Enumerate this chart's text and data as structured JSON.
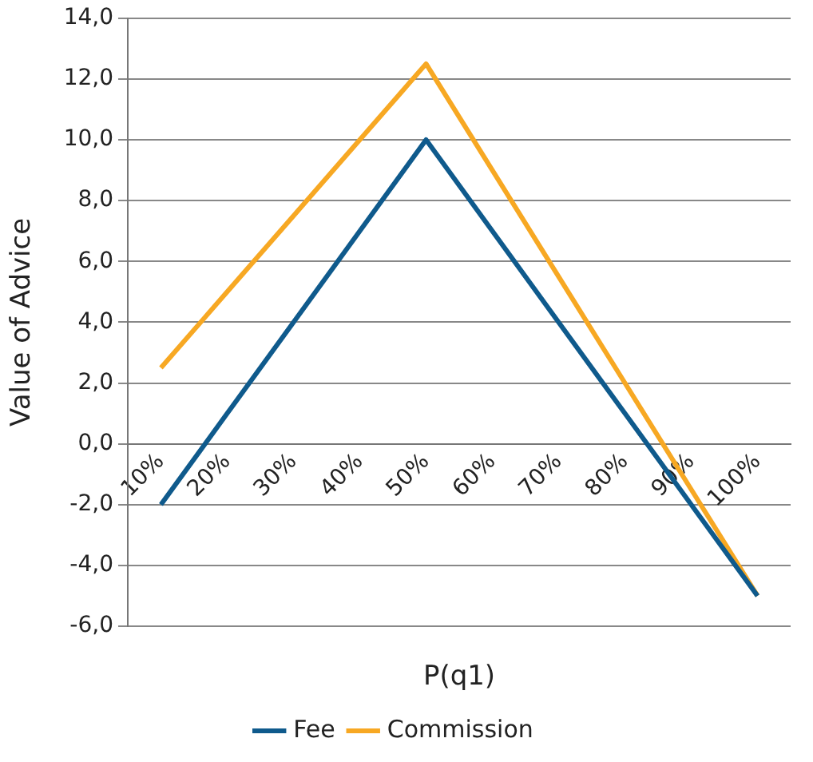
{
  "chart_data": {
    "type": "line",
    "xlabel": "P(q1)",
    "ylabel": "Value of Advice",
    "categories": [
      "10%",
      "20%",
      "30%",
      "40%",
      "50%",
      "60%",
      "70%",
      "80%",
      "90%",
      "100%"
    ],
    "series": [
      {
        "name": "Fee",
        "color": "#0f5a8c",
        "values": [
          -2,
          1,
          4,
          7,
          10,
          7,
          4,
          1,
          -2,
          -5
        ]
      },
      {
        "name": "Commission",
        "color": "#f7a823",
        "values": [
          2.5,
          5,
          7.5,
          10,
          12.5,
          9,
          5.5,
          2,
          -1.5,
          -5
        ]
      }
    ],
    "ylim": [
      -6,
      14
    ],
    "yticks": [
      {
        "value": -6,
        "label": "-6,0"
      },
      {
        "value": -4,
        "label": "-4,0"
      },
      {
        "value": -2,
        "label": "-2,0"
      },
      {
        "value": 0,
        "label": "0,0"
      },
      {
        "value": 2,
        "label": "2,0"
      },
      {
        "value": 4,
        "label": "4,0"
      },
      {
        "value": 6,
        "label": "6,0"
      },
      {
        "value": 8,
        "label": "8,0"
      },
      {
        "value": 10,
        "label": "10,0"
      },
      {
        "value": 12,
        "label": "12,0"
      },
      {
        "value": 14,
        "label": "14,0"
      }
    ],
    "grid": "y",
    "legend": "bottom",
    "marker": "none",
    "line_style": "solid"
  }
}
